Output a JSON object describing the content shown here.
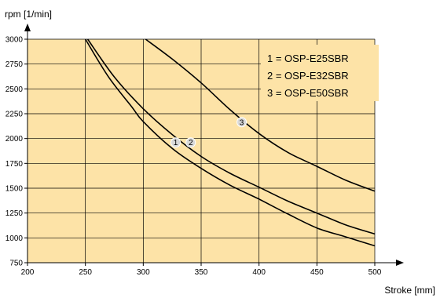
{
  "chart_data": {
    "type": "line",
    "xlabel": "Stroke [mm]",
    "ylabel": "rpm  [1/min]",
    "xlim": [
      200,
      500
    ],
    "ylim": [
      750,
      3000
    ],
    "x_ticks": [
      200,
      250,
      300,
      350,
      400,
      450,
      500
    ],
    "y_ticks": [
      750,
      1000,
      1250,
      1500,
      1750,
      2000,
      2250,
      2500,
      2750,
      3000
    ],
    "grid": true,
    "background_color": "#fde3a7",
    "grid_color": "#000000",
    "line_color": "#000000",
    "legend": [
      "1 = OSP-E25SBR",
      "2 = OSP-E32SBR",
      "3 = OSP-E50SBR"
    ],
    "legend_position": "top-right",
    "series": [
      {
        "label": "1",
        "points": [
          [
            250,
            3000
          ],
          [
            270,
            2620
          ],
          [
            290,
            2320
          ],
          [
            300,
            2170
          ],
          [
            325,
            1900
          ],
          [
            350,
            1700
          ],
          [
            375,
            1530
          ],
          [
            400,
            1390
          ],
          [
            425,
            1240
          ],
          [
            450,
            1100
          ],
          [
            475,
            1010
          ],
          [
            500,
            920
          ]
        ]
      },
      {
        "label": "2",
        "points": [
          [
            252,
            3000
          ],
          [
            275,
            2620
          ],
          [
            300,
            2300
          ],
          [
            325,
            2040
          ],
          [
            350,
            1820
          ],
          [
            375,
            1650
          ],
          [
            400,
            1510
          ],
          [
            425,
            1370
          ],
          [
            450,
            1250
          ],
          [
            475,
            1130
          ],
          [
            500,
            1040
          ]
        ]
      },
      {
        "label": "3",
        "points": [
          [
            302,
            3000
          ],
          [
            325,
            2800
          ],
          [
            350,
            2560
          ],
          [
            375,
            2290
          ],
          [
            400,
            2050
          ],
          [
            425,
            1860
          ],
          [
            450,
            1720
          ],
          [
            475,
            1580
          ],
          [
            500,
            1470
          ]
        ]
      }
    ],
    "curve_labels": [
      {
        "text": "1",
        "x": 328,
        "y": 1960
      },
      {
        "text": "2",
        "x": 341,
        "y": 1960
      },
      {
        "text": "3",
        "x": 385,
        "y": 2165
      }
    ]
  }
}
